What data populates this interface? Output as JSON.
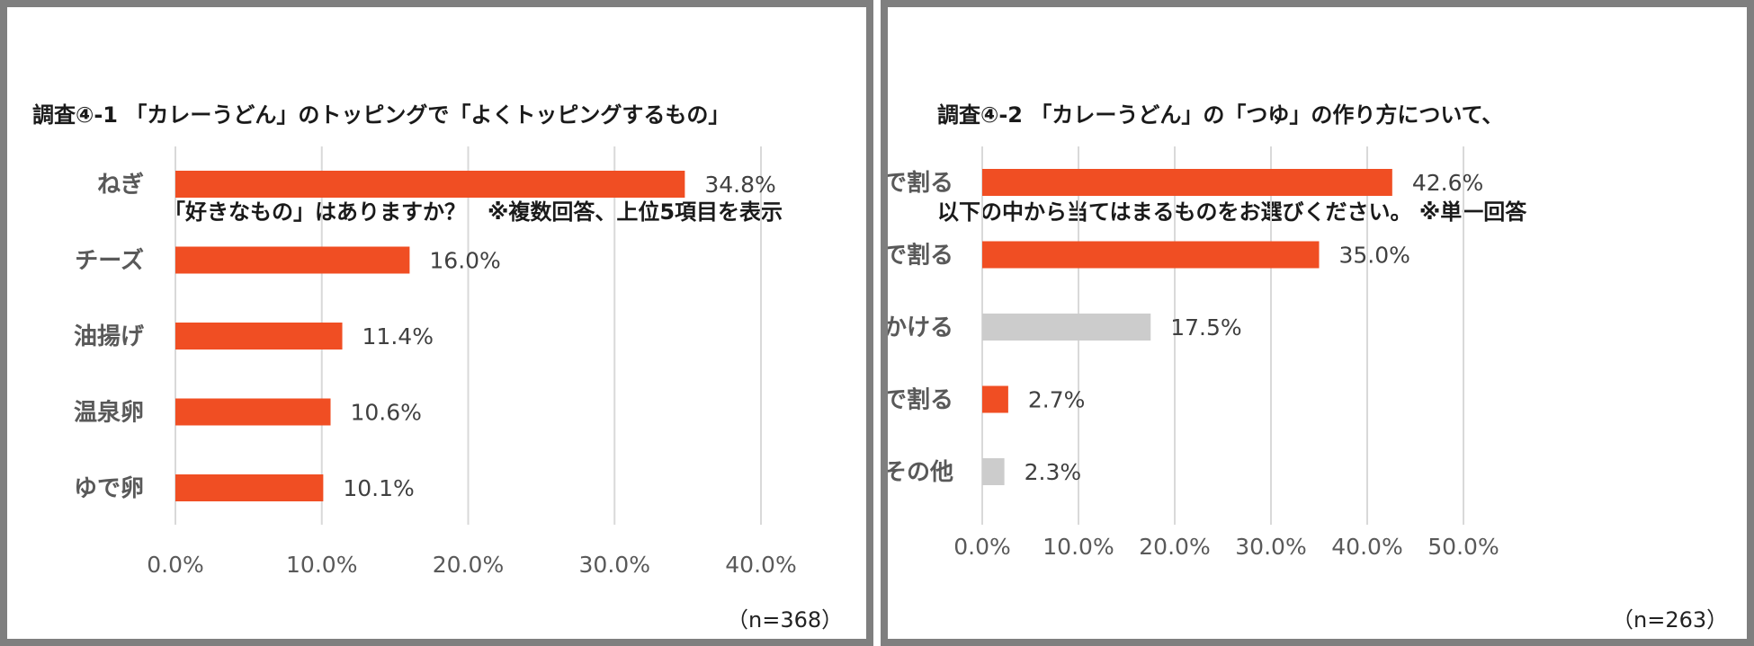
{
  "colors": {
    "accent": "#f04e23",
    "muted": "#cccccc",
    "grid": "#d9d9d9",
    "frame": "#7f7f7f"
  },
  "left": {
    "title_line1": "調査④-1 「カレーうどん」のトッピングで「よくトッピングするもの」",
    "title_line2": "「好きなもの」はありますか？　※複数回答、上位5項目を表示",
    "note": "（n=368）",
    "chart_data": {
      "type": "bar",
      "orientation": "horizontal",
      "categories": [
        "ねぎ",
        "チーズ",
        "油揚げ",
        "温泉卵",
        "ゆで卵"
      ],
      "values": [
        34.8,
        16.0,
        11.4,
        10.6,
        10.1
      ],
      "value_labels": [
        "34.8%",
        "16.0%",
        "11.4%",
        "10.6%",
        "10.1%"
      ],
      "highlight": [
        true,
        true,
        true,
        true,
        true
      ],
      "xlim": [
        0,
        40
      ],
      "xticks": [
        "0.0%",
        "10.0%",
        "20.0%",
        "30.0%",
        "40.0%"
      ],
      "grid": true
    }
  },
  "right": {
    "title_line1": "調査④-2 「カレーうどん」の「つゆ」の作り方について、",
    "title_line2": "以下の中から当てはまるものをお選びください。 ※単一回答",
    "note": "（n=263）",
    "chart_data": {
      "type": "bar",
      "orientation": "horizontal",
      "categories": [
        "ルウを出汁で割る",
        "ルウをめんつゆで割る",
        "ルウをそのままかける",
        "ルウをお湯で割る",
        "その他"
      ],
      "values": [
        42.6,
        35.0,
        17.5,
        2.7,
        2.3
      ],
      "value_labels": [
        "42.6%",
        "35.0%",
        "17.5%",
        "2.7%",
        "2.3%"
      ],
      "highlight": [
        true,
        true,
        false,
        true,
        false
      ],
      "xlim": [
        0,
        50
      ],
      "xticks": [
        "0.0%",
        "10.0%",
        "20.0%",
        "30.0%",
        "40.0%",
        "50.0%"
      ],
      "grid": true
    }
  }
}
